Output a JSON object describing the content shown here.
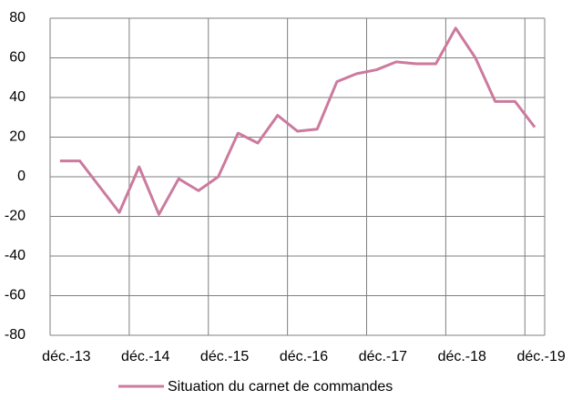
{
  "chart_data": {
    "type": "line",
    "categories": [
      "déc.-13",
      null,
      null,
      null,
      "déc.-14",
      null,
      null,
      null,
      "déc.-15",
      null,
      null,
      null,
      "déc.-16",
      null,
      null,
      null,
      "déc.-17",
      null,
      null,
      null,
      "déc.-18",
      null,
      null,
      null,
      "déc.-19"
    ],
    "series": [
      {
        "name": "Situation du carnet de commandes",
        "color": "#cc7a9e",
        "values": [
          8,
          8,
          -5,
          -18,
          5,
          -19,
          -1,
          -7,
          0,
          22,
          17,
          31,
          23,
          24,
          48,
          52,
          54,
          58,
          57,
          57,
          75,
          60,
          38,
          38,
          25
        ]
      }
    ],
    "ylim": [
      -80,
      80
    ],
    "yticks": [
      -80,
      -60,
      -40,
      -20,
      0,
      20,
      40,
      60,
      80
    ],
    "grid": true,
    "legend": "bottom"
  }
}
